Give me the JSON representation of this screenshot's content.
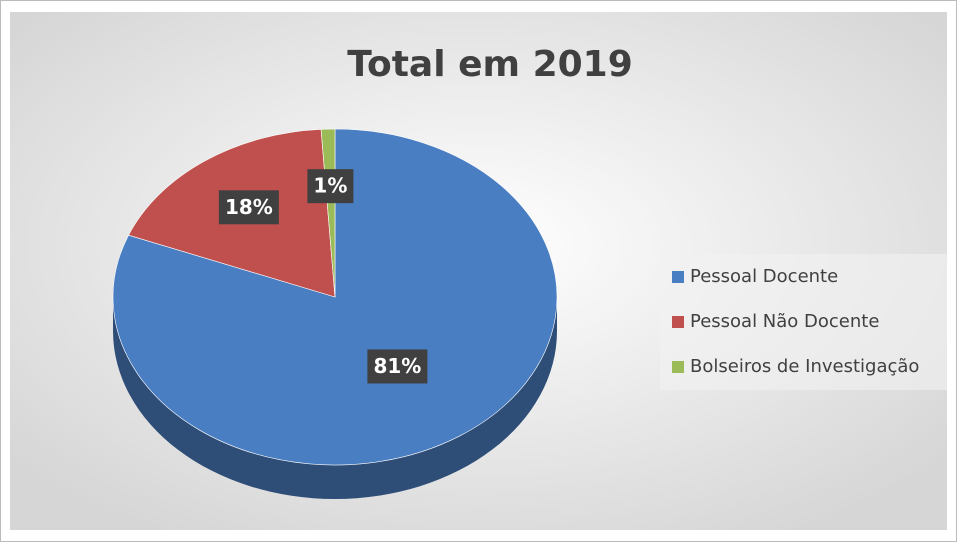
{
  "chart_data": {
    "type": "pie",
    "title": "Total em 2019",
    "categories": [
      "Pessoal Docente",
      "Pessoal Não Docente",
      "Bolseiros de Investigação"
    ],
    "values": [
      81,
      18,
      1
    ],
    "value_labels": [
      "81%",
      "18%",
      "1%"
    ],
    "colors": [
      "#4a7ec2",
      "#c0504d",
      "#9bbb59"
    ],
    "legend": "right"
  }
}
